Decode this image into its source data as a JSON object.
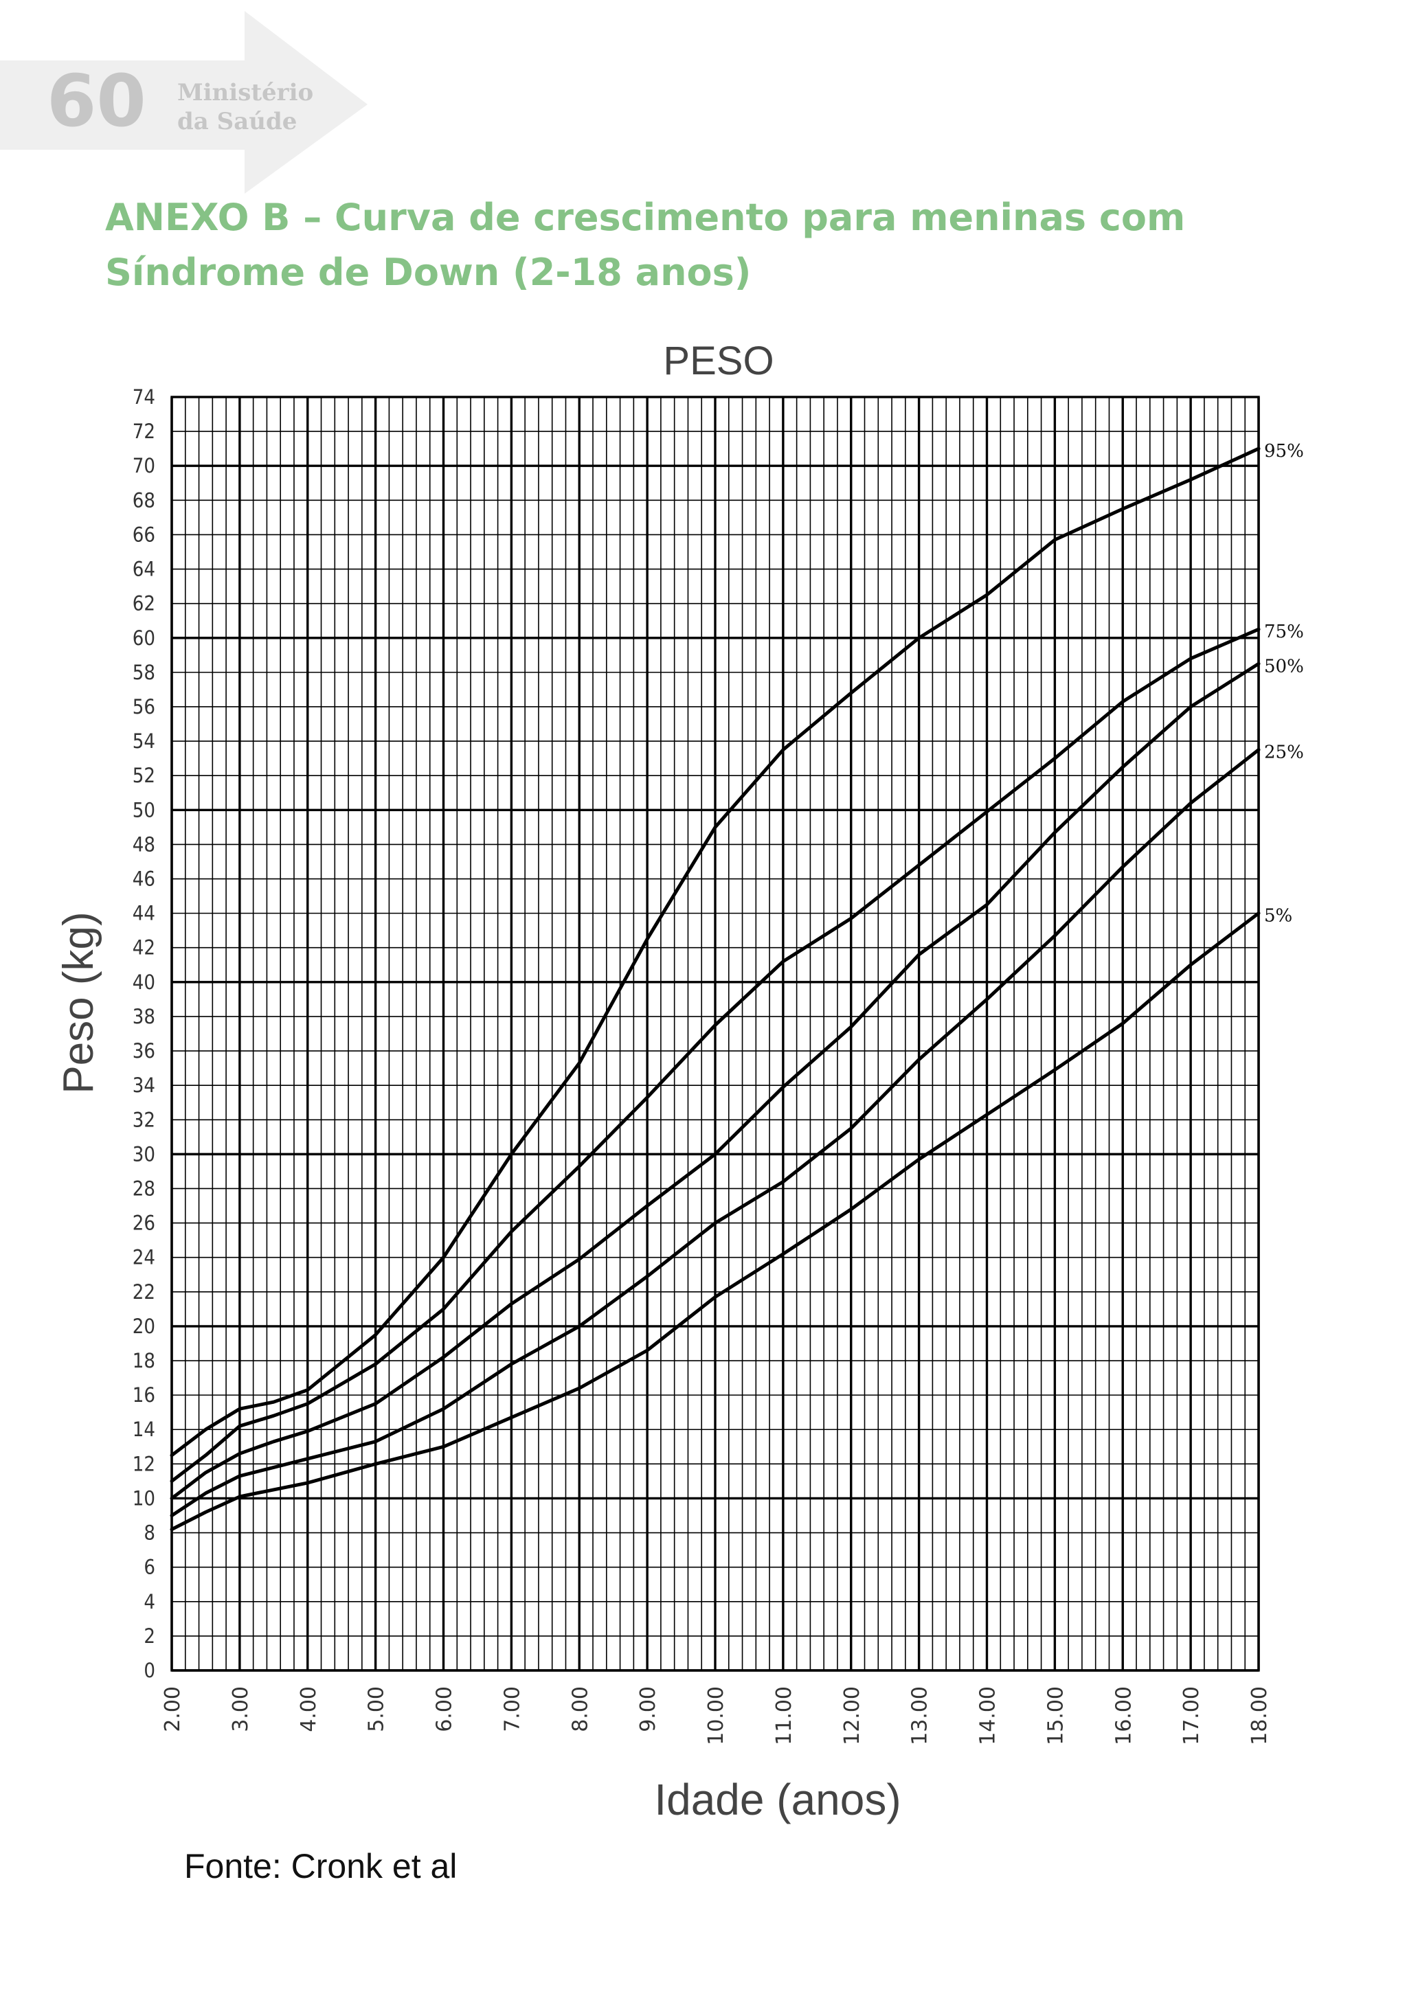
{
  "header": {
    "page_number": "60",
    "ministry_line1": "Ministério",
    "ministry_line2": "da Saúde"
  },
  "title": {
    "line1": "ANEXO B – Curva de crescimento para meninas com",
    "line2": "Síndrome de Down (2-18 anos)"
  },
  "source_note": "Fonte: Cronk et al",
  "colors": {
    "band": "#efefef",
    "header_gray": "#c6c6c6",
    "title_green": "#86c286",
    "axis_label": "#444444",
    "grid": "#000000",
    "curve": "#000000"
  },
  "chart_data": {
    "type": "line",
    "title": "PESO",
    "xlabel": "Idade (anos)",
    "ylabel": "Peso (kg)",
    "xlim": [
      2,
      18
    ],
    "ylim": [
      0,
      74
    ],
    "grid": true,
    "x_tick_labels": [
      "2.00",
      "3.00",
      "4.00",
      "5.00",
      "6.00",
      "7.00",
      "8.00",
      "9.00",
      "10.00",
      "11.00",
      "12.00",
      "13.00",
      "14.00",
      "15.00",
      "16.00",
      "17.00",
      "18.00"
    ],
    "y_tick_labels": [
      "0",
      "2",
      "4",
      "6",
      "8",
      "10",
      "12",
      "14",
      "16",
      "18",
      "20",
      "22",
      "24",
      "26",
      "28",
      "30",
      "32",
      "34",
      "36",
      "38",
      "40",
      "42",
      "44",
      "46",
      "48",
      "50",
      "52",
      "54",
      "56",
      "58",
      "60",
      "62",
      "64",
      "66",
      "68",
      "70",
      "72",
      "74"
    ],
    "series": [
      {
        "name": "95%",
        "x": [
          2,
          2.5,
          3,
          3.5,
          4,
          5,
          6,
          7,
          8,
          9,
          10,
          11,
          12,
          13,
          14,
          15,
          16,
          17,
          18
        ],
        "y": [
          12.5,
          14,
          15.2,
          15.6,
          16.3,
          19.5,
          24,
          30,
          35.3,
          42.5,
          49,
          53.5,
          56.8,
          60,
          62.5,
          65.7,
          67.5,
          69.2,
          71
        ]
      },
      {
        "name": "75%",
        "x": [
          2,
          2.5,
          3,
          3.5,
          4,
          5,
          6,
          7,
          8,
          9,
          10,
          11,
          12,
          13,
          14,
          15,
          16,
          17,
          18
        ],
        "y": [
          11,
          12.5,
          14.2,
          14.8,
          15.5,
          17.8,
          21,
          25.5,
          29.3,
          33.3,
          37.5,
          41.2,
          43.7,
          46.8,
          49.9,
          53,
          56.3,
          58.8,
          60.5
        ]
      },
      {
        "name": "50%",
        "x": [
          2,
          2.5,
          3,
          3.5,
          4,
          5,
          6,
          7,
          8,
          9,
          10,
          11,
          12,
          13,
          14,
          15,
          16,
          17,
          18
        ],
        "y": [
          10,
          11.5,
          12.6,
          13.3,
          13.9,
          15.5,
          18.2,
          21.3,
          23.9,
          27,
          30,
          33.9,
          37.4,
          41.6,
          44.5,
          48.7,
          52.5,
          56,
          58.5
        ]
      },
      {
        "name": "25%",
        "x": [
          2,
          2.5,
          3,
          3.5,
          4,
          5,
          6,
          7,
          8,
          9,
          10,
          11,
          12,
          13,
          14,
          15,
          16,
          17,
          18
        ],
        "y": [
          9,
          10.3,
          11.3,
          11.8,
          12.3,
          13.3,
          15.2,
          17.8,
          20,
          22.9,
          26,
          28.4,
          31.5,
          35.5,
          39,
          42.7,
          46.7,
          50.4,
          53.5
        ]
      },
      {
        "name": "5%",
        "x": [
          2,
          2.5,
          3,
          3.5,
          4,
          5,
          6,
          7,
          8,
          9,
          10,
          11,
          12,
          13,
          14,
          15,
          16,
          17,
          18
        ],
        "y": [
          8.2,
          9.2,
          10.1,
          10.5,
          10.9,
          12,
          13,
          14.7,
          16.4,
          18.6,
          21.7,
          24.2,
          26.8,
          29.7,
          32.3,
          34.9,
          37.6,
          41,
          44
        ]
      }
    ]
  }
}
